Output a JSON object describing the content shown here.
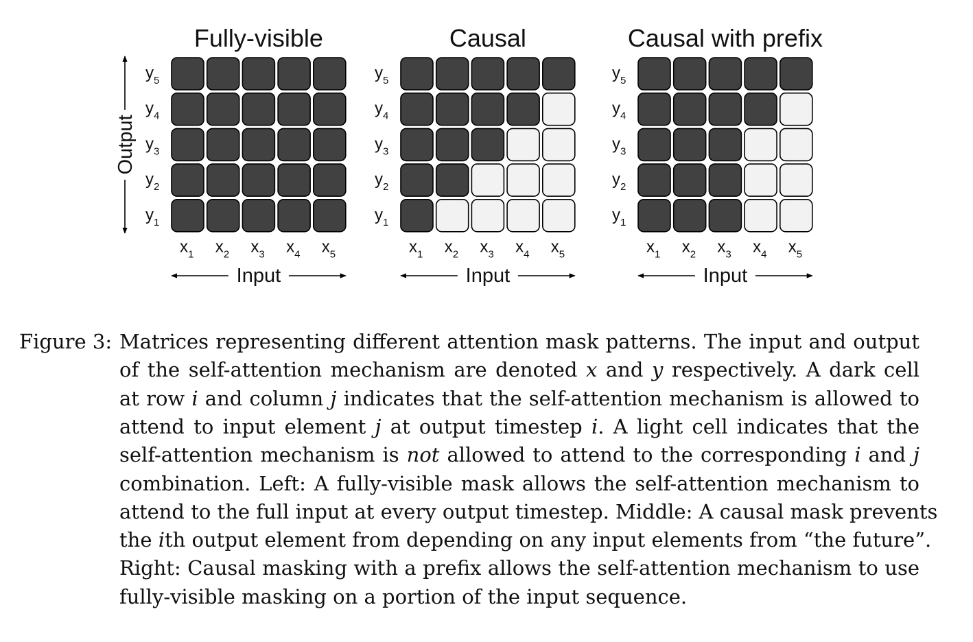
{
  "panels": [
    {
      "title": "Fully-visible",
      "mask": [
        [
          1,
          1,
          1,
          1,
          1
        ],
        [
          1,
          1,
          1,
          1,
          1
        ],
        [
          1,
          1,
          1,
          1,
          1
        ],
        [
          1,
          1,
          1,
          1,
          1
        ],
        [
          1,
          1,
          1,
          1,
          1
        ]
      ]
    },
    {
      "title": "Causal",
      "mask": [
        [
          1,
          1,
          1,
          1,
          1
        ],
        [
          1,
          1,
          1,
          1,
          0
        ],
        [
          1,
          1,
          1,
          0,
          0
        ],
        [
          1,
          1,
          0,
          0,
          0
        ],
        [
          1,
          0,
          0,
          0,
          0
        ]
      ]
    },
    {
      "title": "Causal with prefix",
      "mask": [
        [
          1,
          1,
          1,
          1,
          1
        ],
        [
          1,
          1,
          1,
          1,
          0
        ],
        [
          1,
          1,
          1,
          0,
          0
        ],
        [
          1,
          1,
          1,
          0,
          0
        ],
        [
          1,
          1,
          1,
          0,
          0
        ]
      ]
    }
  ],
  "row_labels": [
    {
      "base": "y",
      "sub": "5"
    },
    {
      "base": "y",
      "sub": "4"
    },
    {
      "base": "y",
      "sub": "3"
    },
    {
      "base": "y",
      "sub": "2"
    },
    {
      "base": "y",
      "sub": "1"
    }
  ],
  "col_labels": [
    {
      "base": "x",
      "sub": "1"
    },
    {
      "base": "x",
      "sub": "2"
    },
    {
      "base": "x",
      "sub": "3"
    },
    {
      "base": "x",
      "sub": "4"
    },
    {
      "base": "x",
      "sub": "5"
    }
  ],
  "output_label": "Output",
  "input_label": "Input",
  "colors": {
    "dark": "#414141",
    "light": "#f2f2f2",
    "stroke": "#000000"
  },
  "caption": {
    "label": "Figure 3:",
    "lines": [
      [
        {
          "t": "Matrices representing different attention mask patterns. The input and output"
        }
      ],
      [
        {
          "t": "of the self-attention mechanism are denoted "
        },
        {
          "t": "x",
          "i": true
        },
        {
          "t": " and "
        },
        {
          "t": "y",
          "i": true
        },
        {
          "t": " respectively. A dark cell"
        }
      ],
      [
        {
          "t": "at row "
        },
        {
          "t": "i",
          "i": true
        },
        {
          "t": " and column "
        },
        {
          "t": "j",
          "i": true
        },
        {
          "t": " indicates that the self-attention mechanism is allowed to"
        }
      ],
      [
        {
          "t": "attend to input element "
        },
        {
          "t": "j",
          "i": true
        },
        {
          "t": " at output timestep "
        },
        {
          "t": "i",
          "i": true
        },
        {
          "t": ". A light cell indicates that the"
        }
      ],
      [
        {
          "t": "self-attention mechanism is "
        },
        {
          "t": "not",
          "i": true
        },
        {
          "t": " allowed to attend to the corresponding "
        },
        {
          "t": "i",
          "i": true
        },
        {
          "t": " and "
        },
        {
          "t": "j",
          "i": true
        }
      ],
      [
        {
          "t": "combination. Left: A fully-visible mask allows the self-attention mechanism to"
        }
      ],
      [
        {
          "t": "attend to the full input at every output timestep. Middle: A causal mask prevents"
        }
      ],
      [
        {
          "t": "the "
        },
        {
          "t": "i",
          "i": true
        },
        {
          "t": "th output element from depending on any input elements from “the future”."
        }
      ],
      [
        {
          "t": "Right: Causal masking with a prefix allows the self-attention mechanism to use"
        }
      ],
      [
        {
          "t": "fully-visible masking on a portion of the input sequence."
        }
      ]
    ]
  }
}
